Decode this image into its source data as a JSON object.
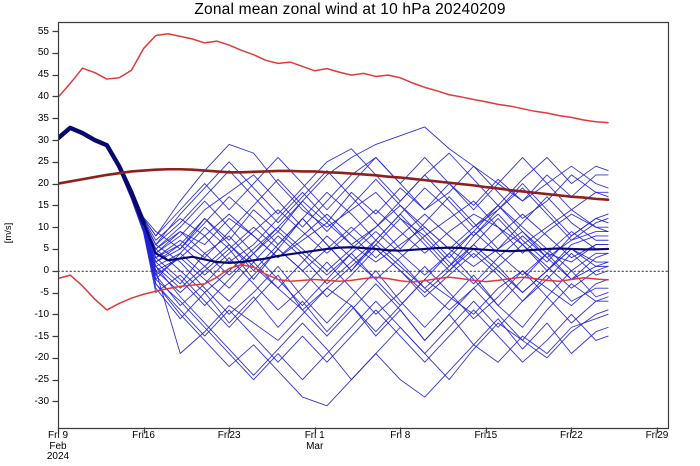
{
  "figure": {
    "title": "Zonal mean zonal wind at 10 hPa 20240209",
    "ylabel": "[m/s]",
    "background": "#ffffff"
  },
  "chart_data": {
    "type": "line",
    "title": "Zonal mean zonal wind at 10 hPa 20240209",
    "ylabel": "[m/s]",
    "x_unit": "days since Fri 9 Feb 2024",
    "xlim": [
      0,
      49.9
    ],
    "ylim": [
      -36.1,
      57.1
    ],
    "grid": "off",
    "legend": "none",
    "zero_line": 0,
    "colors": {
      "member_blue": "#2222d6",
      "ensemble_mean_navy": "#08086e",
      "envelope_red": "#e03a3a",
      "climatology_dark_red": "#8f211c",
      "axis": "#3c3c3c",
      "zero_line_color": "#333333",
      "text": "#000000"
    },
    "yticks": [
      {
        "v": 55,
        "label": "55"
      },
      {
        "v": 50,
        "label": "50"
      },
      {
        "v": 45,
        "label": "45"
      },
      {
        "v": 40,
        "label": "40"
      },
      {
        "v": 35,
        "label": "35"
      },
      {
        "v": 30,
        "label": "30"
      },
      {
        "v": 25,
        "label": "25"
      },
      {
        "v": 20,
        "label": "20"
      },
      {
        "v": 15,
        "label": "15"
      },
      {
        "v": 10,
        "label": "10"
      },
      {
        "v": 5,
        "label": "5"
      },
      {
        "v": 0,
        "label": "0"
      },
      {
        "v": -5,
        "label": "-5"
      },
      {
        "v": -10,
        "label": "-10"
      },
      {
        "v": -15,
        "label": "-15"
      },
      {
        "v": -20,
        "label": "-20"
      },
      {
        "v": -25,
        "label": "-25"
      },
      {
        "v": -30,
        "label": "-30"
      }
    ],
    "xticks": [
      {
        "day": 0,
        "lines": [
          "Fri 9",
          "Feb",
          "2024"
        ]
      },
      {
        "day": 7,
        "lines": [
          "Fri16"
        ]
      },
      {
        "day": 14,
        "lines": [
          "Fri23"
        ]
      },
      {
        "day": 21,
        "lines": [
          "Fri 1",
          "Mar"
        ]
      },
      {
        "day": 28,
        "lines": [
          "Fri 8"
        ]
      },
      {
        "day": 35,
        "lines": [
          "Fri15"
        ]
      },
      {
        "day": 42,
        "lines": [
          "Fri22"
        ]
      },
      {
        "day": 49,
        "lines": [
          "Fri29"
        ]
      }
    ],
    "daily_day_start": 0,
    "daily_day_step": 1,
    "series": {
      "climatological_max": {
        "color": "#e03a3a",
        "width": 1.5,
        "values": [
          39.8,
          43.0,
          46.5,
          45.5,
          44.0,
          44.3,
          46.0,
          51.0,
          54.0,
          54.4,
          53.8,
          53.2,
          52.3,
          52.7,
          51.8,
          50.6,
          49.6,
          48.3,
          47.6,
          47.9,
          46.9,
          45.9,
          46.4,
          45.6,
          44.9,
          45.3,
          44.6,
          44.9,
          44.3,
          43.1,
          42.1,
          41.3,
          40.4,
          39.9,
          39.3,
          38.8,
          38.2,
          37.8,
          37.2,
          36.6,
          36.2,
          35.6,
          35.2,
          34.6,
          34.2,
          34.0
        ]
      },
      "climatological_min": {
        "color": "#e03a3a",
        "width": 1.5,
        "values": [
          -1.8,
          -1.0,
          -3.5,
          -6.5,
          -9.0,
          -7.5,
          -6.3,
          -5.4,
          -4.7,
          -4.1,
          -3.6,
          -3.3,
          -3.0,
          -1.5,
          0.5,
          1.4,
          0.8,
          -0.8,
          -2.0,
          -2.4,
          -2.2,
          -2.0,
          -2.2,
          -2.4,
          -2.2,
          -1.8,
          -1.5,
          -1.8,
          -2.3,
          -2.6,
          -2.3,
          -1.8,
          -1.5,
          -1.8,
          -2.2,
          -2.5,
          -2.2,
          -1.8,
          -1.5,
          -1.8,
          -2.2,
          -2.4,
          -2.0,
          -1.6,
          -1.9,
          -2.1
        ]
      },
      "climatological_mean": {
        "color": "#8f211c",
        "width": 2.6,
        "values": [
          20.0,
          20.5,
          21.0,
          21.5,
          22.0,
          22.4,
          22.8,
          23.0,
          23.2,
          23.3,
          23.3,
          23.2,
          23.0,
          22.8,
          22.6,
          22.6,
          22.7,
          22.8,
          22.9,
          22.9,
          22.8,
          22.8,
          22.6,
          22.5,
          22.3,
          22.1,
          21.9,
          21.6,
          21.4,
          21.1,
          20.8,
          20.5,
          20.2,
          19.9,
          19.6,
          19.2,
          18.9,
          18.5,
          18.2,
          17.9,
          17.6,
          17.3,
          17.0,
          16.8,
          16.5,
          16.3
        ]
      },
      "ensemble_mean": {
        "color": "#08086e",
        "width": 2.2,
        "start_bundle_width": 4.4,
        "start_bundle_until_day": 7,
        "values": [
          30.4,
          32.8,
          31.6,
          30.0,
          28.8,
          24.0,
          18.0,
          11.0,
          4.0,
          2.4,
          2.8,
          3.2,
          2.6,
          2.0,
          1.8,
          2.0,
          2.4,
          2.8,
          3.4,
          3.8,
          4.2,
          4.6,
          5.0,
          5.3,
          5.4,
          5.2,
          5.0,
          4.7,
          4.6,
          4.8,
          5.0,
          5.2,
          5.3,
          5.2,
          5.0,
          4.8,
          4.6,
          4.5,
          4.6,
          4.8,
          5.0,
          5.1,
          5.0,
          4.9,
          4.9,
          5.0
        ]
      },
      "ensemble_members": {
        "color": "#2222d6",
        "width": 0.9,
        "prefix_days": [
          0,
          1,
          2,
          3,
          4,
          5,
          6,
          7
        ],
        "prefix": [
          30.4,
          32.8,
          31.6,
          30.0,
          28.8,
          24.0,
          18.0,
          11.0
        ],
        "member_days": [
          8,
          10,
          12,
          14,
          16,
          18,
          20,
          22,
          24,
          26,
          28,
          30,
          32,
          34,
          36,
          38,
          40,
          42,
          44,
          45
        ],
        "members": [
          [
            8,
            16,
            23,
            29,
            27,
            20,
            14,
            10,
            14,
            18,
            12,
            8,
            12,
            16,
            10,
            6,
            10,
            14,
            10,
            9
          ],
          [
            0,
            -19,
            -14,
            -8,
            -12,
            -16,
            -10,
            -4,
            -8,
            -14,
            -8,
            -2,
            -6,
            -10,
            -4,
            0,
            -4,
            -8,
            -3,
            -2
          ],
          [
            5,
            9,
            6,
            12,
            8,
            3,
            7,
            11,
            6,
            2,
            6,
            10,
            5,
            1,
            5,
            9,
            4,
            2,
            6,
            6
          ],
          [
            2,
            -3,
            4,
            8,
            2,
            -4,
            2,
            8,
            3,
            -2,
            3,
            8,
            2,
            -3,
            3,
            8,
            3,
            -2,
            3,
            4
          ],
          [
            -2,
            4,
            10,
            5,
            -2,
            5,
            12,
            6,
            0,
            7,
            13,
            7,
            1,
            8,
            13,
            7,
            2,
            8,
            12,
            11
          ],
          [
            6,
            2,
            -4,
            -10,
            -5,
            1,
            -6,
            -12,
            -6,
            0,
            -7,
            -13,
            -7,
            -1,
            -8,
            -13,
            -6,
            0,
            -6,
            -5
          ],
          [
            4,
            8,
            14,
            18,
            22,
            16,
            10,
            16,
            22,
            26,
            20,
            14,
            18,
            24,
            18,
            12,
            16,
            22,
            18,
            17
          ],
          [
            1,
            -6,
            -12,
            -18,
            -24,
            -18,
            -12,
            -18,
            -25,
            -19,
            -13,
            -19,
            -25,
            -18,
            -12,
            -16,
            -20,
            -14,
            -10,
            -9
          ],
          [
            3,
            6,
            1,
            -4,
            2,
            8,
            3,
            -3,
            2,
            7,
            2,
            -4,
            1,
            6,
            1,
            -5,
            0,
            5,
            1,
            2
          ],
          [
            7,
            12,
            8,
            2,
            6,
            12,
            18,
            12,
            6,
            10,
            16,
            22,
            16,
            10,
            14,
            20,
            14,
            8,
            12,
            13
          ],
          [
            -1,
            -8,
            -3,
            3,
            -3,
            -9,
            -4,
            2,
            -4,
            -10,
            -5,
            1,
            -5,
            -11,
            -6,
            0,
            -6,
            -12,
            -7,
            -6
          ],
          [
            5,
            10,
            16,
            10,
            4,
            10,
            16,
            22,
            26,
            29,
            31,
            33,
            28,
            24,
            20,
            16,
            20,
            24,
            20,
            19
          ],
          [
            0,
            3,
            -2,
            -7,
            -1,
            5,
            0,
            -6,
            -1,
            5,
            0,
            -6,
            -1,
            4,
            -1,
            -7,
            -2,
            4,
            -1,
            0
          ],
          [
            2,
            5,
            11,
            17,
            12,
            6,
            12,
            18,
            13,
            7,
            13,
            19,
            14,
            8,
            14,
            19,
            13,
            7,
            11,
            12
          ],
          [
            -3,
            -10,
            -16,
            -22,
            -17,
            -23,
            -29,
            -31,
            -25,
            -19,
            -25,
            -29,
            -23,
            -17,
            -21,
            -15,
            -19,
            -13,
            -11,
            -10
          ],
          [
            9,
            5,
            12,
            7,
            14,
            9,
            16,
            11,
            18,
            13,
            19,
            14,
            20,
            15,
            21,
            16,
            22,
            17,
            22,
            22
          ],
          [
            -5,
            -1,
            -7,
            -13,
            -7,
            -1,
            -9,
            -15,
            -9,
            -3,
            -9,
            -16,
            -10,
            -4,
            -10,
            -16,
            -9,
            -3,
            -7,
            -7
          ],
          [
            3,
            7,
            3,
            9,
            15,
            21,
            15,
            9,
            15,
            21,
            15,
            9,
            3,
            9,
            15,
            9,
            3,
            7,
            9,
            9
          ],
          [
            1,
            -4,
            1,
            6,
            1,
            -4,
            -9,
            -4,
            1,
            6,
            1,
            -4,
            -9,
            -4,
            1,
            6,
            1,
            -4,
            0,
            1
          ],
          [
            6,
            11,
            17,
            23,
            17,
            11,
            17,
            23,
            17,
            11,
            5,
            11,
            17,
            11,
            5,
            11,
            17,
            11,
            7,
            7
          ],
          [
            -2,
            -7,
            -13,
            -19,
            -25,
            -19,
            -25,
            -19,
            -13,
            -7,
            -13,
            -19,
            -13,
            -7,
            -13,
            -7,
            -1,
            -7,
            -4,
            -4
          ],
          [
            4,
            9,
            4,
            -1,
            4,
            9,
            4,
            -1,
            4,
            9,
            4,
            -1,
            4,
            9,
            4,
            -1,
            4,
            9,
            5,
            5
          ],
          [
            8,
            14,
            20,
            14,
            20,
            26,
            20,
            14,
            20,
            26,
            20,
            26,
            20,
            14,
            20,
            26,
            20,
            14,
            18,
            18
          ],
          [
            0,
            -5,
            0,
            5,
            10,
            5,
            0,
            5,
            10,
            5,
            0,
            -5,
            0,
            5,
            0,
            -5,
            0,
            5,
            2,
            2
          ],
          [
            -4,
            -11,
            -5,
            -12,
            -6,
            -13,
            -7,
            -14,
            -8,
            -15,
            -9,
            -16,
            -10,
            -17,
            -11,
            -18,
            -12,
            -19,
            -14,
            -13
          ],
          [
            2,
            6,
            12,
            6,
            0,
            6,
            12,
            6,
            0,
            6,
            12,
            6,
            0,
            6,
            12,
            6,
            0,
            6,
            8,
            8
          ],
          [
            5,
            0,
            -5,
            0,
            5,
            10,
            5,
            0,
            5,
            10,
            15,
            10,
            5,
            10,
            15,
            10,
            5,
            0,
            4,
            4
          ],
          [
            -1,
            3,
            8,
            13,
            8,
            3,
            8,
            13,
            8,
            3,
            8,
            13,
            8,
            3,
            8,
            13,
            8,
            3,
            6,
            6
          ],
          [
            3,
            -2,
            -8,
            -2,
            4,
            -2,
            -8,
            -2,
            4,
            -2,
            -8,
            -2,
            4,
            -2,
            -8,
            -2,
            4,
            -2,
            1,
            1
          ],
          [
            6,
            13,
            19,
            25,
            19,
            13,
            19,
            25,
            28,
            22,
            16,
            22,
            27,
            21,
            15,
            21,
            26,
            20,
            24,
            23
          ],
          [
            -3,
            -9,
            -15,
            -9,
            -15,
            -21,
            -15,
            -21,
            -15,
            -9,
            -15,
            -21,
            -15,
            -9,
            -15,
            -21,
            -16,
            -10,
            -16,
            -15
          ],
          [
            1,
            4,
            -1,
            4,
            9,
            14,
            9,
            4,
            9,
            14,
            9,
            4,
            9,
            13,
            10,
            4,
            9,
            13,
            10,
            10
          ]
        ]
      }
    }
  }
}
